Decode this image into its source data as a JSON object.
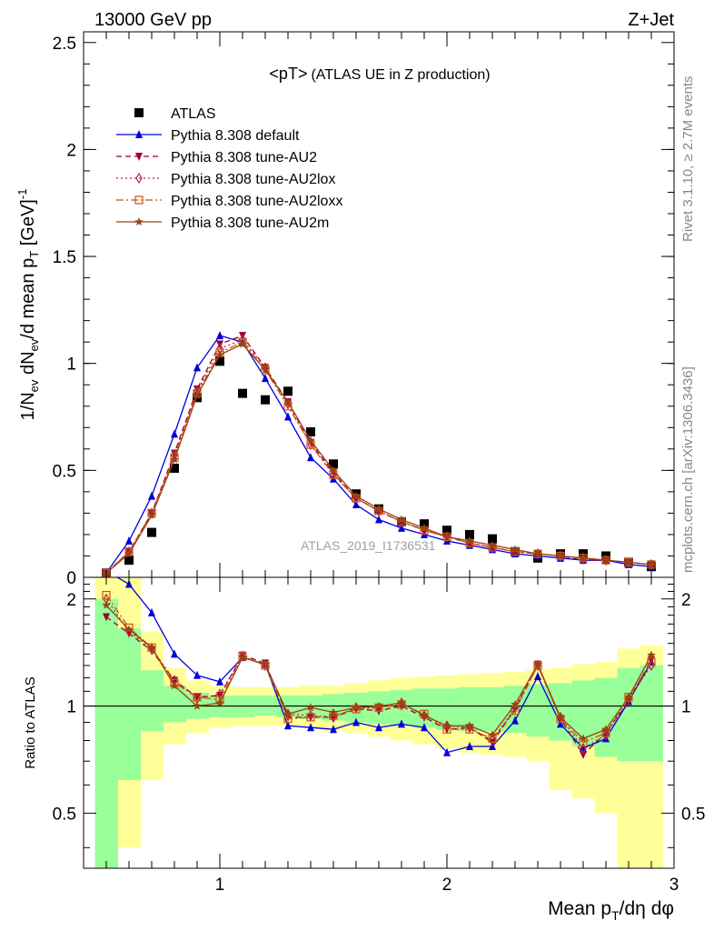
{
  "header": {
    "energy_label": "13000 GeV pp",
    "process_label": "Z+Jet",
    "side_rivet": "Rivet 3.1.10, ≥ 2.7M events",
    "side_mcplots": "mcplots.cern.ch [arXiv:1306.3436]",
    "watermark": "ATLAS_2019_I1736531"
  },
  "chart_data": [
    {
      "type": "scatter",
      "title_main": "<pT>",
      "title_sub": "(ATLAS UE in Z production)",
      "ylabel": "1/N_ev dN_ev/d mean p_T [GeV]^-1",
      "xlim": [
        0.4,
        3.0
      ],
      "ylim": [
        0,
        2.55
      ],
      "yticks": [
        0,
        0.5,
        1,
        1.5,
        2,
        2.5
      ],
      "ytick_labels": [
        "0",
        "0.5",
        "1",
        "1.5",
        "2",
        "2.5"
      ],
      "x": [
        0.5,
        0.6,
        0.7,
        0.8,
        0.9,
        1.0,
        1.1,
        1.2,
        1.3,
        1.4,
        1.5,
        1.6,
        1.7,
        1.8,
        1.9,
        2.0,
        2.1,
        2.2,
        2.3,
        2.4,
        2.5,
        2.6,
        2.7,
        2.8,
        2.9
      ],
      "series": [
        {
          "name": "ATLAS",
          "color": "#000000",
          "marker": "square",
          "values": [
            0.02,
            0.08,
            0.21,
            0.51,
            0.84,
            1.01,
            0.86,
            0.83,
            0.87,
            0.68,
            0.53,
            0.39,
            0.32,
            0.26,
            0.25,
            0.22,
            0.2,
            0.18,
            0.12,
            0.09,
            0.11,
            0.11,
            0.1,
            0.07,
            0.05
          ]
        },
        {
          "name": "Pythia 8.308 default",
          "color": "#0000dd",
          "marker": "triangle-up",
          "line": "solid",
          "values": [
            0.02,
            0.17,
            0.38,
            0.67,
            0.98,
            1.13,
            1.1,
            0.93,
            0.75,
            0.56,
            0.46,
            0.34,
            0.27,
            0.23,
            0.2,
            0.17,
            0.15,
            0.13,
            0.11,
            0.1,
            0.09,
            0.08,
            0.08,
            0.06,
            0.05
          ]
        },
        {
          "name": "Pythia 8.308 tune-AU2",
          "color": "#990033",
          "marker": "triangle-down",
          "line": "dash",
          "values": [
            0.02,
            0.12,
            0.3,
            0.58,
            0.88,
            1.09,
            1.13,
            0.98,
            0.82,
            0.63,
            0.49,
            0.37,
            0.31,
            0.26,
            0.22,
            0.19,
            0.16,
            0.14,
            0.12,
            0.11,
            0.1,
            0.08,
            0.08,
            0.07,
            0.06
          ]
        },
        {
          "name": "Pythia 8.308 tune-AU2lox",
          "color": "#bb2244",
          "marker": "diamond-open",
          "line": "dot",
          "values": [
            0.02,
            0.12,
            0.3,
            0.57,
            0.87,
            1.07,
            1.11,
            0.98,
            0.81,
            0.62,
            0.48,
            0.37,
            0.31,
            0.26,
            0.22,
            0.19,
            0.16,
            0.14,
            0.12,
            0.11,
            0.1,
            0.09,
            0.08,
            0.07,
            0.06
          ]
        },
        {
          "name": "Pythia 8.308 tune-AU2loxx",
          "color": "#cc5511",
          "marker": "square-open",
          "line": "dashdot",
          "values": [
            0.02,
            0.12,
            0.3,
            0.56,
            0.86,
            1.05,
            1.1,
            0.97,
            0.8,
            0.62,
            0.48,
            0.37,
            0.31,
            0.26,
            0.22,
            0.19,
            0.16,
            0.14,
            0.12,
            0.11,
            0.1,
            0.09,
            0.08,
            0.07,
            0.06
          ]
        },
        {
          "name": "Pythia 8.308 tune-AU2m",
          "color": "#994411",
          "marker": "star",
          "line": "solid",
          "values": [
            0.02,
            0.11,
            0.29,
            0.55,
            0.85,
            1.04,
            1.09,
            0.97,
            0.82,
            0.64,
            0.5,
            0.38,
            0.32,
            0.27,
            0.23,
            0.19,
            0.17,
            0.15,
            0.13,
            0.11,
            0.1,
            0.09,
            0.08,
            0.07,
            0.06
          ]
        }
      ]
    },
    {
      "type": "line",
      "ylabel": "Ratio to ATLAS",
      "xlabel": "Mean p_T/dη dφ",
      "xlim": [
        0.4,
        3.0
      ],
      "ylim": [
        0.35,
        2.3
      ],
      "yticks": [
        0.5,
        1,
        2
      ],
      "ytick_labels": [
        "0.5",
        "1",
        "2"
      ],
      "xticks": [
        1,
        2,
        3
      ],
      "xtick_labels": [
        "1",
        "2",
        "3"
      ],
      "reference": 1,
      "bands": {
        "bin_edges": [
          0.45,
          0.55,
          0.65,
          0.75,
          0.85,
          0.95,
          1.05,
          1.15,
          1.25,
          1.35,
          1.45,
          1.55,
          1.65,
          1.75,
          1.85,
          1.95,
          2.05,
          2.15,
          2.25,
          2.35,
          2.45,
          2.55,
          2.65,
          2.75,
          2.85,
          2.95
        ],
        "outer_color": "#ffff99",
        "inner_color": "#99ff99",
        "outer_high": [
          2.3,
          2.3,
          1.62,
          1.28,
          1.18,
          1.14,
          1.13,
          1.13,
          1.13,
          1.14,
          1.14,
          1.16,
          1.18,
          1.2,
          1.21,
          1.22,
          1.23,
          1.24,
          1.25,
          1.27,
          1.28,
          1.31,
          1.33,
          1.45,
          1.48
        ],
        "outer_low": [
          0.35,
          0.4,
          0.62,
          0.78,
          0.84,
          0.87,
          0.88,
          0.88,
          0.88,
          0.87,
          0.85,
          0.84,
          0.82,
          0.8,
          0.78,
          0.76,
          0.74,
          0.73,
          0.72,
          0.7,
          0.58,
          0.55,
          0.5,
          0.35,
          0.35
        ],
        "inner_high": [
          2.0,
          1.65,
          1.26,
          1.14,
          1.09,
          1.07,
          1.07,
          1.07,
          1.07,
          1.07,
          1.08,
          1.09,
          1.1,
          1.11,
          1.12,
          1.12,
          1.13,
          1.13,
          1.14,
          1.15,
          1.16,
          1.18,
          1.2,
          1.28,
          1.3
        ],
        "inner_low": [
          0.35,
          0.62,
          0.85,
          0.9,
          0.92,
          0.93,
          0.93,
          0.94,
          0.93,
          0.92,
          0.91,
          0.9,
          0.89,
          0.88,
          0.87,
          0.86,
          0.85,
          0.85,
          0.84,
          0.82,
          0.8,
          0.77,
          0.72,
          0.7,
          0.7
        ]
      },
      "x": [
        0.5,
        0.6,
        0.7,
        0.8,
        0.9,
        1.0,
        1.1,
        1.2,
        1.3,
        1.4,
        1.5,
        1.6,
        1.7,
        1.8,
        1.9,
        2.0,
        2.1,
        2.2,
        2.3,
        2.4,
        2.5,
        2.6,
        2.7,
        2.8,
        2.9
      ],
      "series": [
        {
          "name": "Pythia 8.308 default",
          "color": "#0000dd",
          "marker": "triangle-up",
          "line": "solid",
          "values": [
            2.4,
            2.2,
            1.83,
            1.4,
            1.22,
            1.17,
            1.37,
            1.31,
            0.88,
            0.87,
            0.86,
            0.9,
            0.87,
            0.89,
            0.87,
            0.74,
            0.77,
            0.77,
            0.91,
            1.21,
            0.89,
            0.76,
            0.81,
            1.03,
            1.33
          ]
        },
        {
          "name": "Pythia 8.308 tune-AU2",
          "color": "#990033",
          "marker": "triangle-down",
          "line": "dash",
          "values": [
            1.78,
            1.6,
            1.43,
            1.18,
            1.06,
            1.07,
            1.39,
            1.32,
            0.93,
            0.93,
            0.93,
            0.98,
            0.97,
            1.0,
            0.93,
            0.86,
            0.87,
            0.79,
            0.98,
            1.31,
            0.92,
            0.73,
            0.84,
            1.03,
            1.35
          ]
        },
        {
          "name": "Pythia 8.308 tune-AU2lox",
          "color": "#bb2244",
          "marker": "diamond-open",
          "line": "dot",
          "values": [
            2.0,
            1.62,
            1.45,
            1.18,
            1.05,
            1.08,
            1.38,
            1.3,
            0.95,
            0.94,
            0.93,
            0.99,
            0.99,
            1.02,
            0.94,
            0.88,
            0.87,
            0.8,
            0.99,
            1.3,
            0.93,
            0.76,
            0.83,
            1.05,
            1.3
          ]
        },
        {
          "name": "Pythia 8.308 tune-AU2loxx",
          "color": "#cc5511",
          "marker": "square-open",
          "line": "dashdot",
          "values": [
            2.05,
            1.66,
            1.46,
            1.16,
            1.06,
            1.04,
            1.38,
            1.3,
            0.92,
            0.93,
            0.94,
            0.98,
            0.99,
            1.01,
            0.95,
            0.86,
            0.86,
            0.81,
            0.97,
            1.3,
            0.92,
            0.79,
            0.84,
            1.06,
            1.33
          ]
        },
        {
          "name": "Pythia 8.308 tune-AU2m",
          "color": "#994411",
          "marker": "star",
          "line": "solid",
          "values": [
            1.92,
            1.64,
            1.46,
            1.14,
            1.0,
            1.02,
            1.37,
            1.31,
            0.95,
            0.99,
            0.96,
            0.99,
            1.0,
            1.02,
            0.94,
            0.88,
            0.88,
            0.83,
            1.01,
            1.31,
            0.93,
            0.81,
            0.86,
            1.06,
            1.39
          ]
        }
      ]
    }
  ]
}
